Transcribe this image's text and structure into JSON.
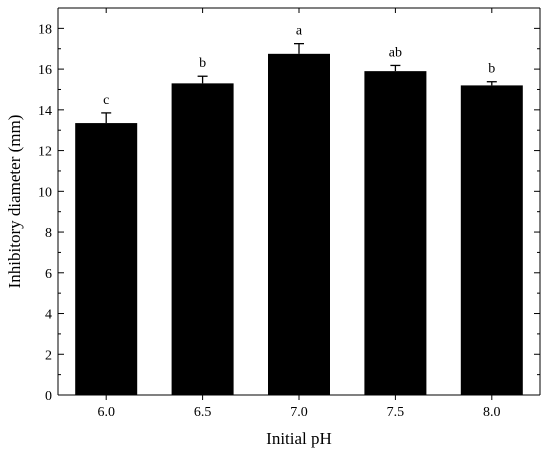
{
  "chart_data": {
    "type": "bar",
    "title": "",
    "xlabel": "Initial pH",
    "ylabel": "Inhibitory diameter (mm)",
    "categories": [
      "6.0",
      "6.5",
      "7.0",
      "7.5",
      "8.0"
    ],
    "values": [
      13.35,
      15.3,
      16.75,
      15.9,
      15.2
    ],
    "errors": [
      0.5,
      0.35,
      0.5,
      0.28,
      0.18
    ],
    "letters": [
      "c",
      "b",
      "a",
      "ab",
      "b"
    ],
    "ylim": [
      0,
      19
    ],
    "yticks": [
      "0",
      "2",
      "4",
      "6",
      "8",
      "10",
      "12",
      "14",
      "16",
      "18"
    ],
    "grid": false,
    "bar_color": "#000000"
  }
}
